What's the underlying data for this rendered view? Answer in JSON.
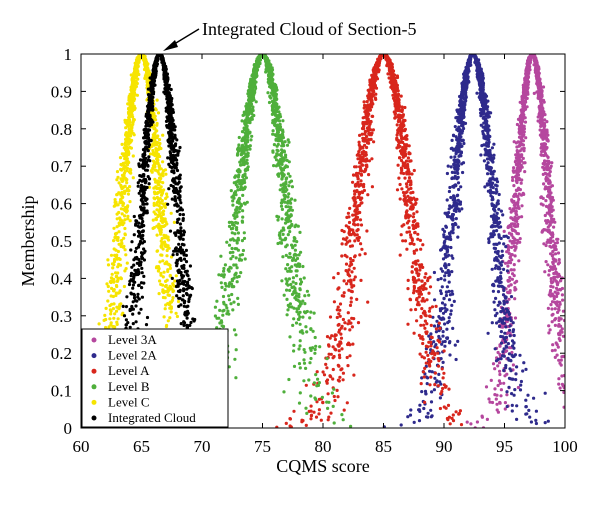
{
  "chart_data": {
    "type": "scatter",
    "title": "",
    "annotation": "Integrated Cloud of Section-5",
    "xlabel": "CQMS score",
    "ylabel": "Membership",
    "xlim": [
      60,
      100
    ],
    "ylim": [
      0,
      1
    ],
    "xticks": [
      60,
      65,
      70,
      75,
      80,
      85,
      90,
      95,
      100
    ],
    "yticks": [
      0,
      0.1,
      0.2,
      0.3,
      0.4,
      0.5,
      0.6,
      0.7,
      0.8,
      0.9,
      1
    ],
    "ytick_labels": [
      "0",
      "0.1",
      "0.2",
      "0.3",
      "0.4",
      "0.5",
      "0.6",
      "0.7",
      "0.8",
      "0.9",
      "1"
    ],
    "grid": false,
    "legend_position": "bottom-left",
    "series": [
      {
        "name": "Level 3A",
        "color": "#b5479e",
        "expectation": 97.3,
        "entropy": 1.3,
        "hyper_entropy": 0.25
      },
      {
        "name": "Level 2A",
        "color": "#2e2a8c",
        "expectation": 92.4,
        "entropy": 1.6,
        "hyper_entropy": 0.3
      },
      {
        "name": "Level A",
        "color": "#d8261c",
        "expectation": 85.0,
        "entropy": 2.1,
        "hyper_entropy": 0.35
      },
      {
        "name": "Level B",
        "color": "#4faf3b",
        "expectation": 75.0,
        "entropy": 1.9,
        "hyper_entropy": 0.35
      },
      {
        "name": "Level C",
        "color": "#f6e400",
        "expectation": 65.0,
        "entropy": 1.5,
        "hyper_entropy": 0.3
      },
      {
        "name": "Integrated Cloud",
        "color": "#000000",
        "expectation": 66.5,
        "entropy": 1.4,
        "hyper_entropy": 0.25
      }
    ]
  }
}
